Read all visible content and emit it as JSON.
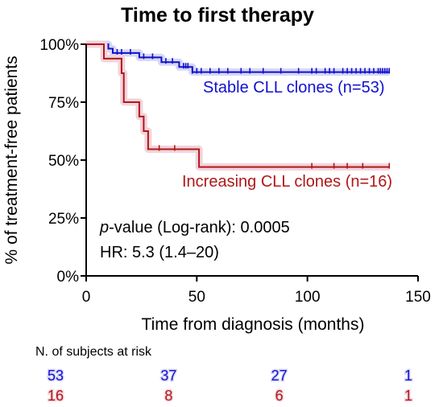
{
  "chart_data": {
    "type": "line",
    "subtype": "kaplan-meier",
    "title": "Time to first therapy",
    "xlabel": "Time from diagnosis (months)",
    "ylabel": "% of treatment-free patients",
    "xlim": [
      0,
      150
    ],
    "ylim": [
      0,
      100
    ],
    "x_ticks": [
      0,
      50,
      100,
      150
    ],
    "y_ticks": [
      0,
      25,
      50,
      75,
      100
    ],
    "y_tick_labels": [
      "0%",
      "25%",
      "50%",
      "75%",
      "100%"
    ],
    "grid": false,
    "series": [
      {
        "name": "Stable CLL clones (n=53)",
        "color": "#1010d0",
        "highlight": "#d7d7f3",
        "steps": [
          [
            0,
            100
          ],
          [
            10,
            100
          ],
          [
            10,
            98.1
          ],
          [
            12,
            98.1
          ],
          [
            12,
            96.2
          ],
          [
            24,
            96.2
          ],
          [
            24,
            94.3
          ],
          [
            34,
            94.3
          ],
          [
            34,
            92.3
          ],
          [
            42,
            92.3
          ],
          [
            42,
            90.2
          ],
          [
            48,
            90.2
          ],
          [
            48,
            88
          ],
          [
            137,
            88
          ]
        ],
        "censor_x": [
          14,
          16,
          20,
          26,
          30,
          36,
          39,
          44,
          45,
          46,
          48,
          50,
          52,
          56,
          60,
          64,
          70,
          74,
          80,
          88,
          96,
          102,
          104,
          108,
          110,
          112,
          116,
          118,
          120,
          122,
          124,
          126,
          128,
          130,
          132,
          133,
          134,
          135,
          136,
          137
        ]
      },
      {
        "name": "Increasing CLL clones (n=16)",
        "color": "#b01818",
        "highlight": "#f2d3dc",
        "steps": [
          [
            0,
            100
          ],
          [
            8,
            100
          ],
          [
            8,
            93.8
          ],
          [
            16,
            93.8
          ],
          [
            16,
            87.5
          ],
          [
            17,
            87.5
          ],
          [
            17,
            75
          ],
          [
            24,
            75
          ],
          [
            24,
            68.8
          ],
          [
            26,
            68.8
          ],
          [
            26,
            62.5
          ],
          [
            28,
            62.5
          ],
          [
            28,
            54.7
          ],
          [
            51,
            54.7
          ],
          [
            51,
            47
          ],
          [
            137,
            47
          ]
        ],
        "censor_x": [
          33,
          40,
          102,
          112,
          118,
          125,
          137
        ]
      }
    ],
    "annotations": {
      "pvalue_italic": "p",
      "pvalue_rest": "-value (Log-rank): 0.0005",
      "hr": "HR: 5.3 (1.4–20)"
    },
    "risk_table": {
      "header": "N. of subjects at risk",
      "times": [
        0,
        50,
        100,
        150
      ],
      "stable": [
        "53",
        "37",
        "27",
        "1"
      ],
      "increasing": [
        "16",
        "8",
        "6",
        "1"
      ]
    }
  }
}
